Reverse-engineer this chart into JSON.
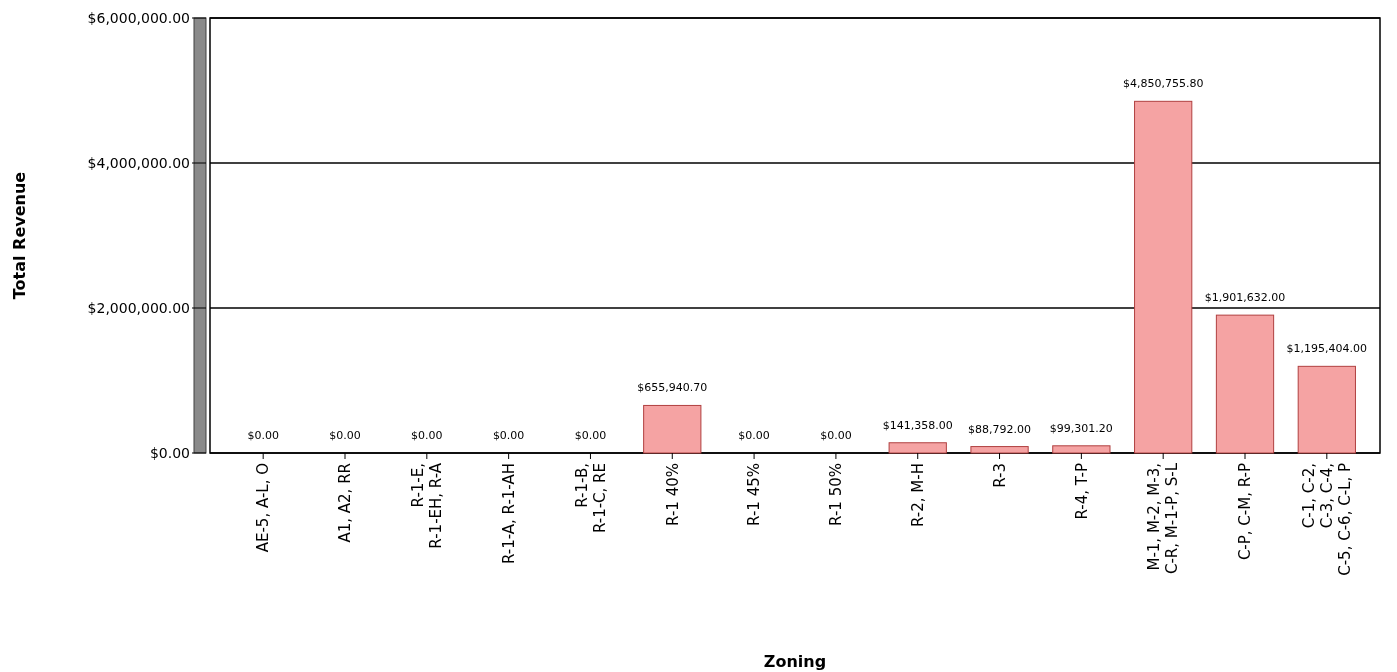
{
  "chart_data": {
    "type": "bar",
    "xlabel": "Zoning",
    "ylabel": "Total Revenue",
    "categories": [
      "AE-5, A-L, O",
      "A1, A2, RR",
      "R-1-E,\nR-1-EH, R-A",
      "R-1-A, R-1-AH",
      "R-1-B,\nR-1-C, RE",
      "R-1 40%",
      "R-1 45%",
      "R-1 50%",
      "R-2, M-H",
      "R-3",
      "R-4, T-P",
      "M-1, M-2, M-3,\nC-R, M-1-P, S-L",
      "C-P, C-M, R-P",
      "C-1, C-2,\nC-3, C-4,\nC-5, C-6, C-L, P"
    ],
    "values": [
      0,
      0,
      0,
      0,
      0,
      655940.7,
      0,
      0,
      141358,
      88792,
      99301.2,
      4850755.8,
      1901632,
      1195404
    ],
    "value_labels": [
      "$0.00",
      "$0.00",
      "$0.00",
      "$0.00",
      "$0.00",
      "$655,940.70",
      "$0.00",
      "$0.00",
      "$141,358.00",
      "$88,792.00",
      "$99,301.20",
      "$4,850,755.80",
      "$1,901,632.00",
      "$1,195,404.00"
    ],
    "color": "#f5a3a3",
    "ylim": [
      0,
      6000000
    ],
    "yticks": [
      {
        "value": 0,
        "label": "$0.00"
      },
      {
        "value": 2000000,
        "label": "$2,000,000.00"
      },
      {
        "value": 4000000,
        "label": "$4,000,000.00"
      },
      {
        "value": 6000000,
        "label": "$6,000,000.00"
      }
    ],
    "grid": "y"
  }
}
